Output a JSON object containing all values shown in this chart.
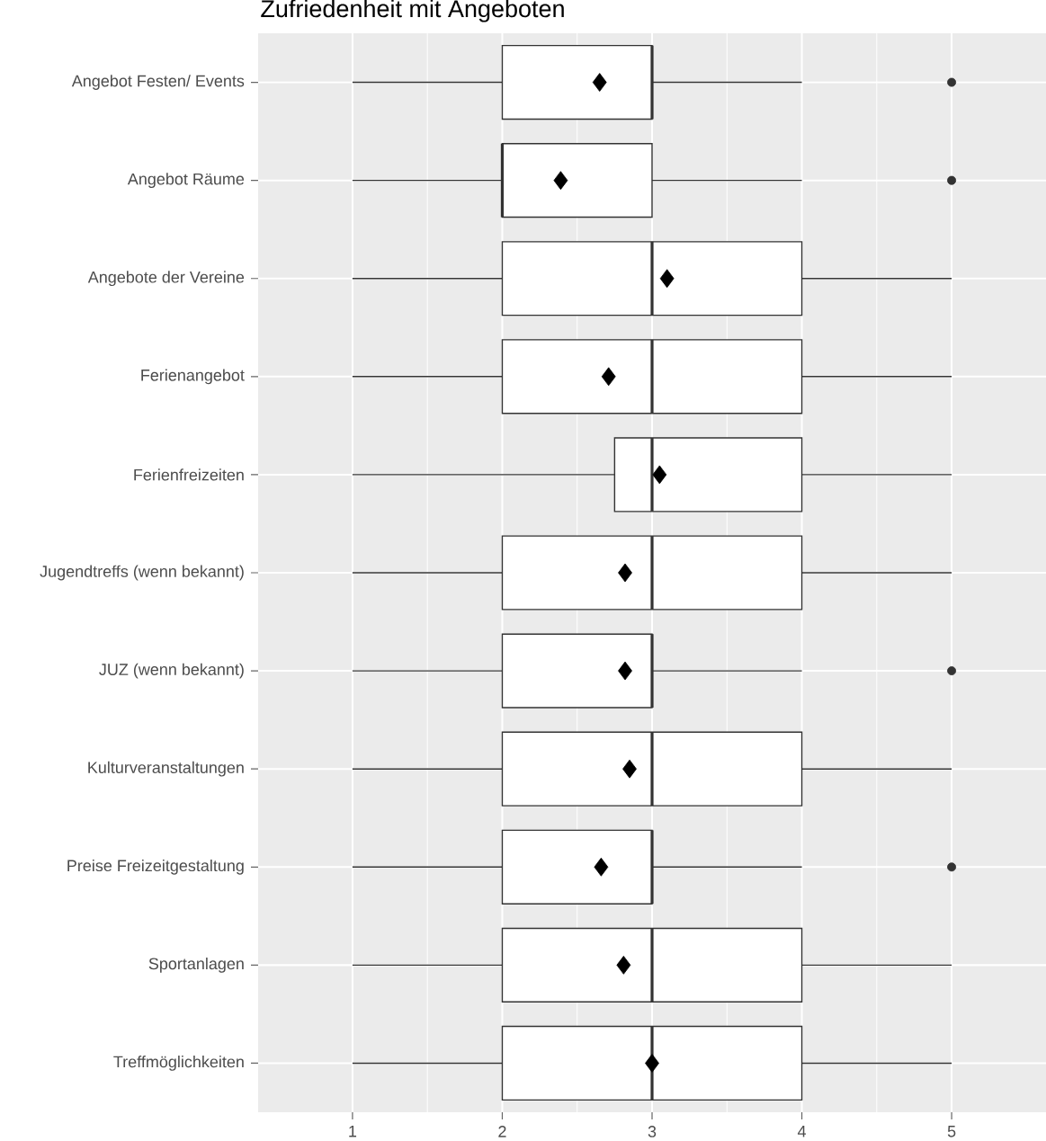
{
  "chart_data": {
    "type": "box",
    "orientation": "horizontal",
    "title": "Zufriedenheit mit Angeboten",
    "categories": [
      "Angebot Festen/ Events",
      "Angebot Räume",
      "Angebote der Vereine",
      "Ferienangebot",
      "Ferienfreizeiten",
      "Jugendtreffs (wenn bekannt)",
      "JUZ (wenn bekannt)",
      "Kulturveranstaltungen",
      "Preise Freizeitgestaltung",
      "Sportanlagen",
      "Treffmöglichkeiten"
    ],
    "boxes": [
      {
        "low": 1,
        "q1": 2,
        "median": 3,
        "q3": 3,
        "high": 4,
        "mean": 2.65,
        "outliers": [
          5
        ]
      },
      {
        "low": 1,
        "q1": 2,
        "median": 2,
        "q3": 3,
        "high": 4,
        "mean": 2.39,
        "outliers": [
          5
        ]
      },
      {
        "low": 1,
        "q1": 2,
        "median": 3,
        "q3": 4,
        "high": 5,
        "mean": 3.1
      },
      {
        "low": 1,
        "q1": 2,
        "median": 3,
        "q3": 4,
        "high": 5,
        "mean": 2.71
      },
      {
        "low": 1,
        "q1": 2.75,
        "median": 3,
        "q3": 4,
        "high": 5,
        "mean": 3.05
      },
      {
        "low": 1,
        "q1": 2,
        "median": 3,
        "q3": 4,
        "high": 5,
        "mean": 2.82
      },
      {
        "low": 1,
        "q1": 2,
        "median": 3,
        "q3": 3,
        "high": 4,
        "mean": 2.82,
        "outliers": [
          5
        ]
      },
      {
        "low": 1,
        "q1": 2,
        "median": 3,
        "q3": 4,
        "high": 5,
        "mean": 2.85
      },
      {
        "low": 1,
        "q1": 2,
        "median": 3,
        "q3": 3,
        "high": 4,
        "mean": 2.66,
        "outliers": [
          5
        ]
      },
      {
        "low": 1,
        "q1": 2,
        "median": 3,
        "q3": 4,
        "high": 5,
        "mean": 2.81
      },
      {
        "low": 1,
        "q1": 2,
        "median": 3,
        "q3": 4,
        "high": 5,
        "mean": 3.0
      }
    ],
    "xlim": [
      0.37,
      5.63
    ],
    "xticks": [
      1,
      2,
      3,
      4,
      5
    ],
    "grid": true
  }
}
